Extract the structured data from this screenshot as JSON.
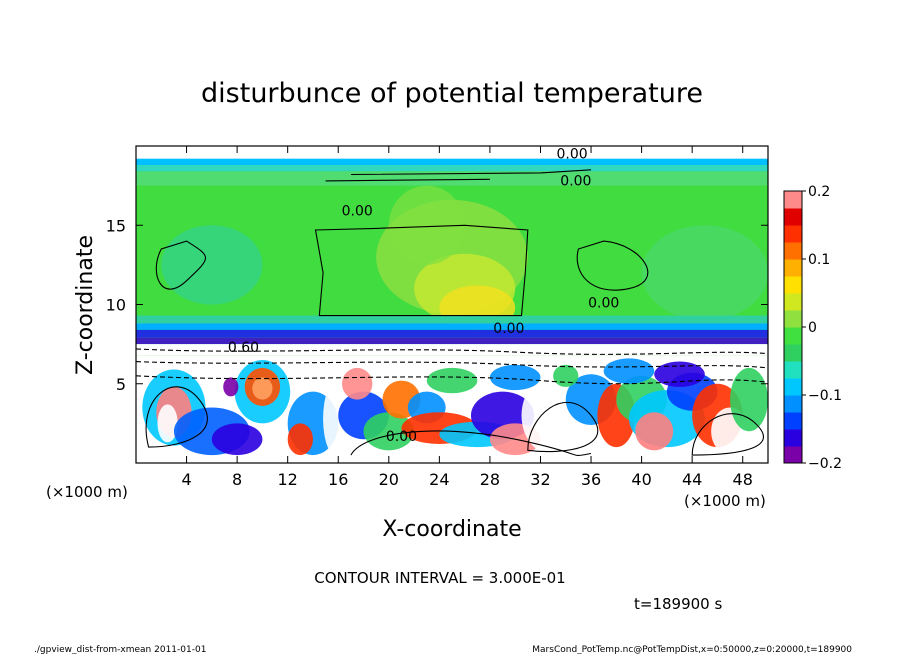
{
  "chart_data": {
    "type": "heatmap",
    "title": "disturbunce of potential temperature",
    "xlabel": "X-coordinate",
    "ylabel": "Z-coordinate",
    "x_unit_left": "(×1000 m)",
    "x_unit_right": "(×1000 m)",
    "xlim": [
      0,
      50
    ],
    "ylim": [
      0,
      20
    ],
    "x_ticks": [
      4,
      8,
      12,
      16,
      20,
      24,
      28,
      32,
      36,
      40,
      44,
      48
    ],
    "y_ticks": [
      5,
      10,
      15
    ],
    "colorbar": {
      "ticks": [
        "0.2",
        "0.1",
        "0",
        "−0.1",
        "−0.2"
      ],
      "tick_values": [
        0.2,
        0.1,
        0,
        -0.1,
        -0.2
      ],
      "range": [
        -0.2,
        0.2
      ],
      "colors": [
        "#7a00a8",
        "#2a00e0",
        "#0040ff",
        "#0090ff",
        "#00c8ff",
        "#20e0c0",
        "#30d060",
        "#40e040",
        "#90e040",
        "#d0e820",
        "#ffe000",
        "#ffb000",
        "#ff7000",
        "#ff3000",
        "#e00000",
        "#ff8a8a"
      ]
    },
    "contour_labels": [
      "0.00",
      "0.00",
      "0.00",
      "0.60",
      "0.00",
      "0.00",
      "0.00"
    ],
    "contour_interval": "CONTOUR INTERVAL = 3.000E-01",
    "time_label": "t=189900 s"
  },
  "footer": {
    "left": "./gpview_dist-from-xmean  2011-01-01",
    "right": "MarsCond_PotTemp.nc@PotTempDist,x=0:50000,z=0:20000,t=189900"
  }
}
